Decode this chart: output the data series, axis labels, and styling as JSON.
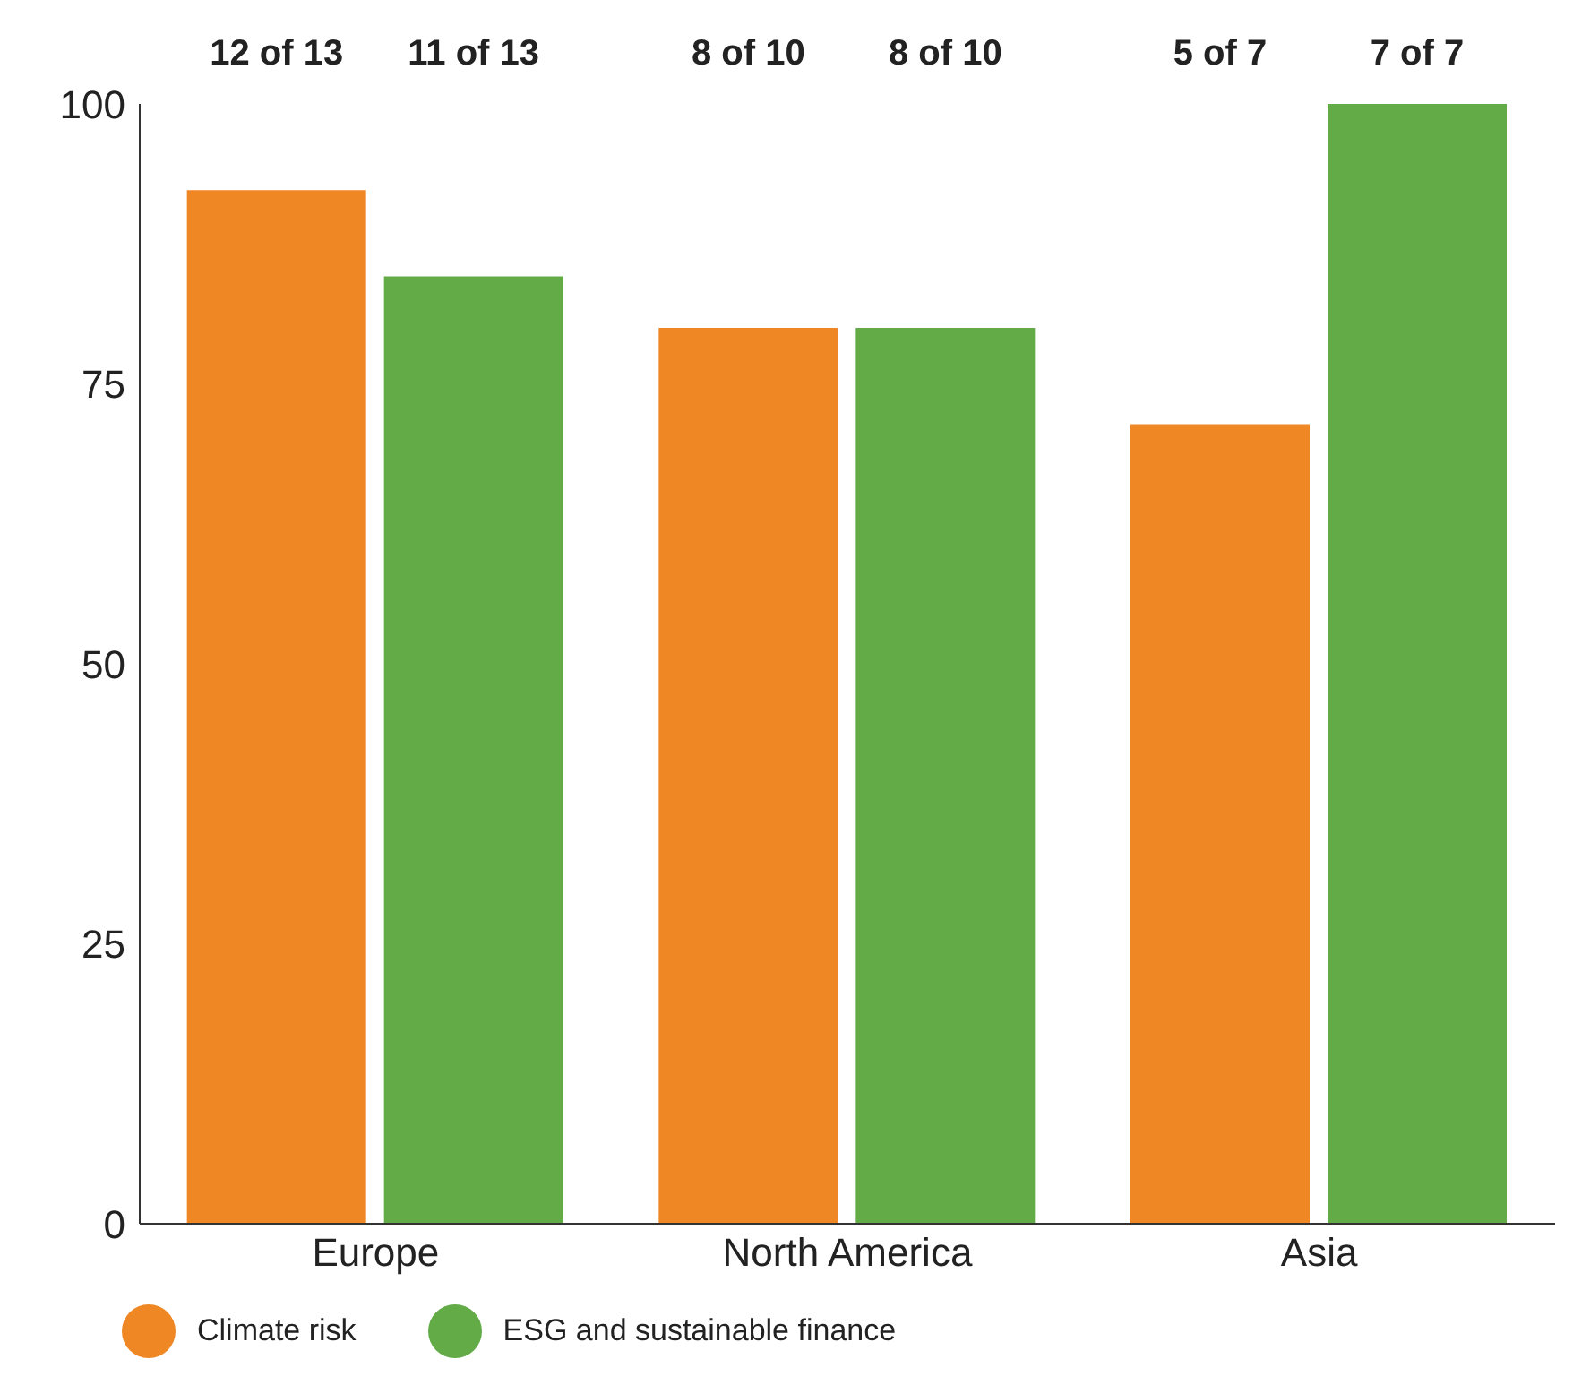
{
  "chart_data": {
    "type": "bar",
    "categories": [
      "Europe",
      "North America",
      "Asia"
    ],
    "series": [
      {
        "name": "Climate risk",
        "color": "#ee8724",
        "values": [
          92.3,
          80,
          71.4
        ]
      },
      {
        "name": "ESG and sustainable finance",
        "color": "#62ab47",
        "values": [
          84.6,
          80,
          100
        ]
      }
    ],
    "annotations": [
      "12 of 13",
      "11 of 13",
      "8 of 10",
      "8 of 10",
      "5 of 7",
      "7 of 7"
    ],
    "ylim": [
      0,
      100
    ],
    "yticks": [
      0,
      25,
      50,
      75,
      100
    ],
    "grid": false,
    "legend": "bottom left"
  }
}
